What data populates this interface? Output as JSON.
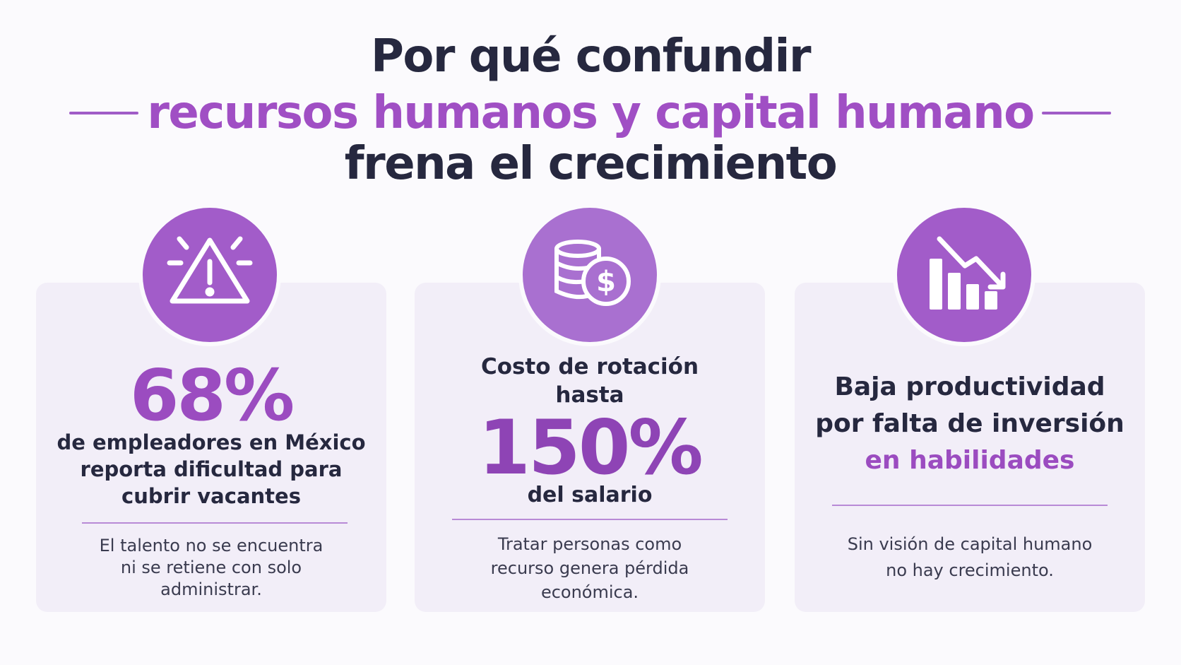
{
  "header": {
    "title_lines": [
      "Por qué confundir",
      "recursos humanos y capital humano",
      "frena el crecimiento"
    ]
  },
  "cards": [
    {
      "stat": "68%",
      "text_lines": [
        "de empleadores en México",
        "reporta dificultad para",
        "cubrir vacantes"
      ],
      "note_lines": [
        "El talento no se encuentra",
        "ni se retiene con solo",
        "administrar."
      ]
    },
    {
      "lead_lines": [
        "Costo de rotación",
        "hasta"
      ],
      "stat": "150%",
      "text_lines": [
        "del salario"
      ],
      "note_lines": [
        "Tratar personas como",
        "recurso genera pérdida",
        "económica."
      ]
    },
    {
      "text_lines": [
        "Baja productividad",
        "por falta de inversión"
      ],
      "highlight": "en habilidades",
      "note_lines": [
        "Sin visión de capital humano",
        "no hay crecimiento."
      ]
    }
  ]
}
